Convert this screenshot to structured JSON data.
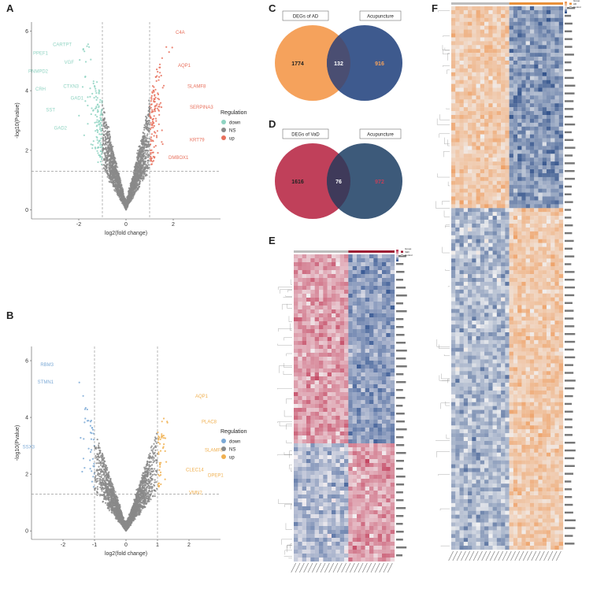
{
  "panels": {
    "A": "A",
    "B": "B",
    "C": "C",
    "D": "D",
    "E": "E",
    "F": "F"
  },
  "chart_data": [
    {
      "id": "A",
      "type": "scatter",
      "title": "",
      "xlabel": "log2(fold change)",
      "ylabel": "-log10(Pvalue)",
      "xlim": [
        -4,
        4
      ],
      "ylim": [
        -0.3,
        6.3
      ],
      "xticks": [
        "-2",
        "0",
        "2"
      ],
      "yticks": [
        "0",
        "2",
        "4",
        "6"
      ],
      "thresholds": {
        "fc": [
          -1,
          1
        ],
        "p": 1.3
      },
      "legend": {
        "title": "Regulation",
        "items": [
          "down",
          "NS",
          "up"
        ]
      },
      "colors": {
        "down": "#8fd3c2",
        "NS": "#8a8a8a",
        "up": "#e8705c"
      },
      "labels": [
        {
          "text": "CARTPT",
          "x": -2.3,
          "y": 5.5,
          "group": "down"
        },
        {
          "text": "PPEF1",
          "x": -3.3,
          "y": 5.2,
          "group": "down"
        },
        {
          "text": "VGF",
          "x": -2.2,
          "y": 4.9,
          "group": "down"
        },
        {
          "text": "PNMPD2",
          "x": -3.3,
          "y": 4.6,
          "group": "down"
        },
        {
          "text": "CTXN3",
          "x": -2.0,
          "y": 4.1,
          "group": "down"
        },
        {
          "text": "CRH",
          "x": -3.4,
          "y": 4.0,
          "group": "down"
        },
        {
          "text": "GAD1",
          "x": -1.8,
          "y": 3.7,
          "group": "down"
        },
        {
          "text": "SST",
          "x": -3.0,
          "y": 3.3,
          "group": "down"
        },
        {
          "text": "GAD2",
          "x": -2.5,
          "y": 2.7,
          "group": "down"
        },
        {
          "text": "C4A",
          "x": 2.1,
          "y": 5.9,
          "group": "up"
        },
        {
          "text": "AQP1",
          "x": 2.2,
          "y": 4.8,
          "group": "up"
        },
        {
          "text": "SLAMF8",
          "x": 2.6,
          "y": 4.1,
          "group": "up"
        },
        {
          "text": "SERPINA3",
          "x": 2.7,
          "y": 3.4,
          "group": "up"
        },
        {
          "text": "KRT79",
          "x": 2.7,
          "y": 2.3,
          "group": "up"
        },
        {
          "text": "DMBOX1",
          "x": 1.8,
          "y": 1.7,
          "group": "up"
        }
      ]
    },
    {
      "id": "B",
      "type": "scatter",
      "title": "",
      "xlabel": "log2(fold change)",
      "ylabel": "-log10(Pvalue)",
      "xlim": [
        -3,
        3
      ],
      "ylim": [
        -0.3,
        6.5
      ],
      "xticks": [
        "-2",
        "-1",
        "0",
        "1",
        "2"
      ],
      "yticks": [
        "0",
        "2",
        "4",
        "6"
      ],
      "thresholds": {
        "fc": [
          -1,
          1
        ],
        "p": 1.3
      },
      "legend": {
        "title": "Regulation",
        "items": [
          "down",
          "NS",
          "up"
        ]
      },
      "colors": {
        "down": "#7ba9d6",
        "NS": "#8a8a8a",
        "up": "#f0b050"
      },
      "labels": [
        {
          "text": "RBM3",
          "x": -2.3,
          "y": 5.8,
          "group": "down"
        },
        {
          "text": "STMN1",
          "x": -2.3,
          "y": 5.2,
          "group": "down"
        },
        {
          "text": "SSX3",
          "x": -2.9,
          "y": 2.9,
          "group": "down"
        },
        {
          "text": "AQP1",
          "x": 2.2,
          "y": 4.7,
          "group": "up"
        },
        {
          "text": "PLAC8",
          "x": 2.4,
          "y": 3.8,
          "group": "up"
        },
        {
          "text": "SLAMF8",
          "x": 2.5,
          "y": 2.8,
          "group": "up"
        },
        {
          "text": "DPEP1",
          "x": 2.6,
          "y": 1.9,
          "group": "up"
        },
        {
          "text": "CLEC14",
          "x": 1.9,
          "y": 2.1,
          "group": "up"
        },
        {
          "text": "VMN2",
          "x": 2.0,
          "y": 1.3,
          "group": "up"
        }
      ]
    }
  ],
  "venn": [
    {
      "id": "C",
      "left_label": "DEGs of AD",
      "right_label": "Acupuncture",
      "left_only": "1774",
      "shared": "132",
      "right_only": "916",
      "left_color": "#f5a25c",
      "right_color": "#3e5a8e",
      "overlap_color": "#4a4e72",
      "right_num_color": "#f5a25c"
    },
    {
      "id": "D",
      "left_label": "DEGs of VaD",
      "right_label": "Acupuncture",
      "left_only": "1616",
      "shared": "76",
      "right_only": "972",
      "left_color": "#c0405a",
      "right_color": "#3d5a7a",
      "overlap_color": "#3f3a5a",
      "right_num_color": "#c0405a"
    }
  ],
  "heatmaps": {
    "E": {
      "rows": 78,
      "cols": 24,
      "low": "#3c5c96",
      "mid": "#f4f0f2",
      "high": "#c2405c",
      "legend_items": [
        "Group",
        "VaD",
        "Control"
      ]
    },
    "F": {
      "rows": 140,
      "cols": 27,
      "low": "#34548c",
      "mid": "#f1f1f2",
      "high": "#ee9a5a",
      "legend_items": [
        "Group",
        "AD",
        "Control"
      ]
    }
  }
}
